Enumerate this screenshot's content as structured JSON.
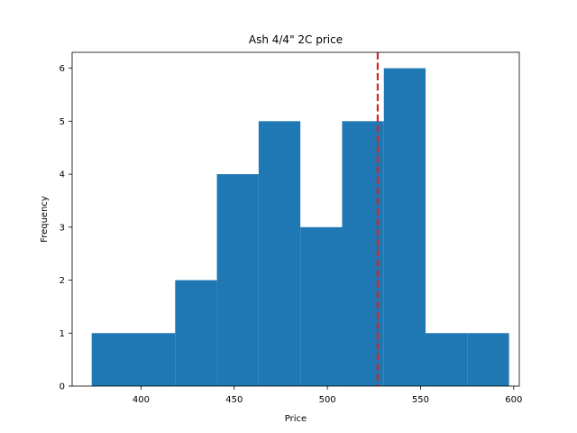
{
  "chart_data": {
    "type": "bar",
    "title": "Ash 4/4\" 2C price",
    "xlabel": "Price",
    "ylabel": "Frequency",
    "bin_edges": [
      373.5,
      395.9,
      418.3,
      440.7,
      463.1,
      485.5,
      507.9,
      530.3,
      552.7,
      575.1,
      597.5
    ],
    "values": [
      1,
      1,
      2,
      4,
      5,
      3,
      5,
      6,
      1,
      1
    ],
    "bar_color": "#1f77b4",
    "xlim": [
      363,
      603
    ],
    "ylim": [
      0,
      6.3
    ],
    "xticks": [
      400,
      450,
      500,
      550,
      600
    ],
    "yticks": [
      0,
      1,
      2,
      3,
      4,
      5,
      6
    ],
    "reference_line": {
      "x": 527,
      "color": "#d62728",
      "style": "dashed"
    },
    "grid": false,
    "legend": "none"
  }
}
